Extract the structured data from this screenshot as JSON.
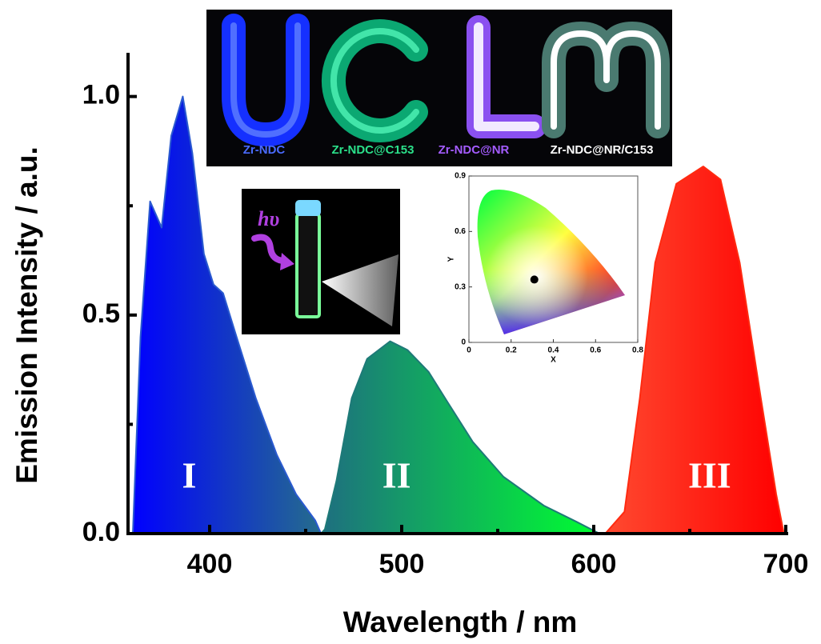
{
  "chart_data": [
    {
      "type": "area",
      "x_label": "Wavelength / nm",
      "y_label": "Emission Intensity / a.u.",
      "xlim": [
        357.5,
        700
      ],
      "ylim": [
        0,
        1.1
      ],
      "xticks": [
        400,
        500,
        600,
        700
      ],
      "xminorticks": [
        450,
        550,
        650
      ],
      "yticks": [
        {
          "value": 0,
          "label": "0.0"
        },
        {
          "value": 0.5,
          "label": "0.5"
        },
        {
          "value": 1,
          "label": "1.0"
        }
      ],
      "yminorticks": [
        0.25,
        0.75
      ],
      "series": [
        {
          "name": "I",
          "color": "#2a5ad0",
          "gradient": [
            "#0000ff",
            "#256d8c"
          ],
          "x": [
            360,
            364,
            369,
            375,
            380,
            386,
            391,
            397,
            402,
            407,
            414,
            424,
            435,
            445,
            455,
            458
          ],
          "values": [
            0,
            0.45,
            0.76,
            0.7,
            0.91,
            1.0,
            0.87,
            0.64,
            0.57,
            0.55,
            0.45,
            0.31,
            0.18,
            0.09,
            0.03,
            0
          ]
        },
        {
          "name": "II",
          "color": "#1e7a78",
          "gradient": [
            "#1e6e80",
            "#00ff30"
          ],
          "x": [
            458,
            460,
            466,
            474,
            482,
            494,
            503,
            514,
            524,
            537,
            553,
            574,
            591,
            603
          ],
          "values": [
            0,
            0.01,
            0.12,
            0.31,
            0.4,
            0.44,
            0.42,
            0.37,
            0.3,
            0.21,
            0.13,
            0.064,
            0.027,
            0
          ]
        },
        {
          "name": "III",
          "color": "#ff2a10",
          "gradient": [
            "#ff4a30",
            "#ff0000"
          ],
          "x": [
            606,
            616,
            624,
            632,
            643,
            657,
            666,
            676,
            687,
            695,
            699
          ],
          "values": [
            0,
            0.05,
            0.31,
            0.62,
            0.8,
            0.84,
            0.81,
            0.62,
            0.31,
            0.09,
            0
          ]
        }
      ]
    },
    {
      "type": "scatter",
      "x_label": "X",
      "y_label": "Y",
      "xlim": [
        0,
        0.8
      ],
      "ylim": [
        0,
        0.9
      ],
      "xticks": [
        0,
        0.2,
        0.4,
        0.6,
        0.8
      ],
      "yticks": [
        0,
        0.3,
        0.6,
        0.9
      ],
      "color": "#000000",
      "x": [
        0.31
      ],
      "values": [
        0.34
      ]
    }
  ],
  "photo": {
    "labels": [
      {
        "text": "Zr-NDC",
        "color": "#4a6bff"
      },
      {
        "text": "Zr-NDC@C153",
        "color": "#2be08a"
      },
      {
        "text": "Zr-NDC@NR",
        "color": "#a45cff"
      },
      {
        "text": "Zr-NDC@NR/C153",
        "color": "#ffffff"
      }
    ]
  },
  "vial_photo": {
    "label": "hυ"
  }
}
